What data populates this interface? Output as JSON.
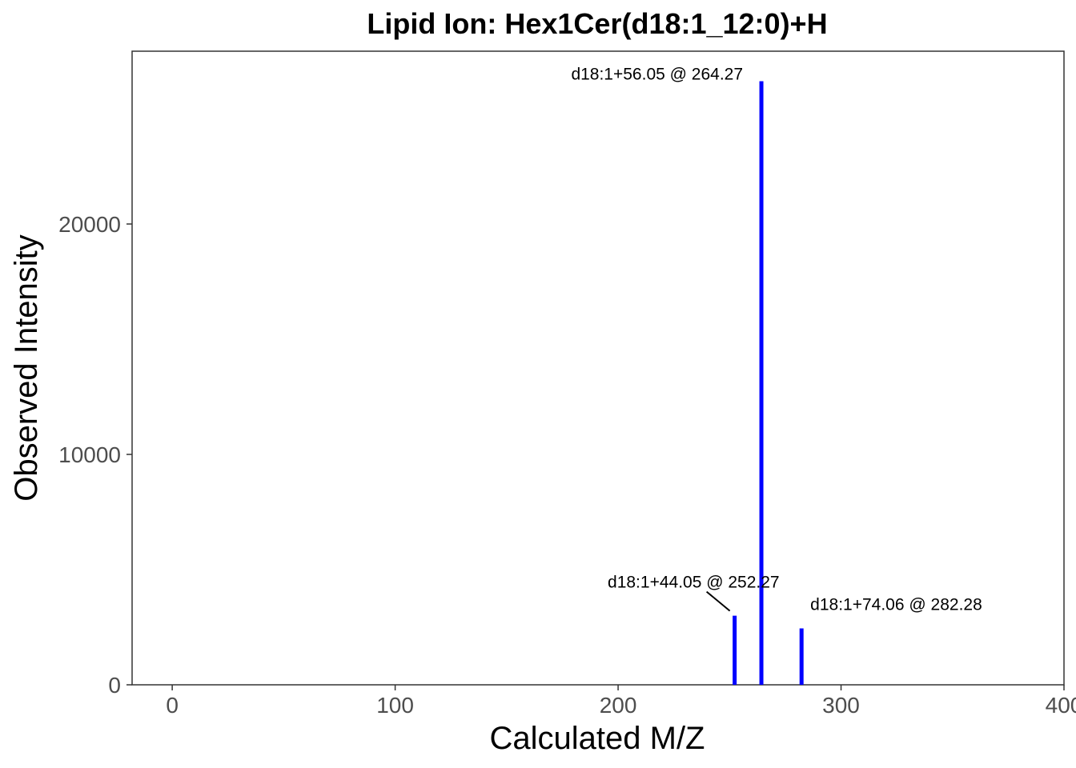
{
  "chart_data": {
    "type": "bar",
    "title": "Lipid Ion: Hex1Cer(d18:1_12:0)+H",
    "xlabel": "Calculated M/Z",
    "ylabel": "Observed Intensity",
    "xlim": [
      -18,
      400
    ],
    "ylim": [
      0,
      27500
    ],
    "xticks": [
      0,
      100,
      200,
      300,
      400
    ],
    "xtick_labels": [
      "0",
      "100",
      "200",
      "300",
      "400"
    ],
    "yticks": [
      0,
      10000,
      20000
    ],
    "ytick_labels": [
      "0",
      "10000",
      "20000"
    ],
    "grid": false,
    "bar_color": "#0000ff",
    "peaks": [
      {
        "x": 252.27,
        "y": 3000,
        "label": "d18:1+44.05 @ 252.27"
      },
      {
        "x": 264.27,
        "y": 26200,
        "label": "d18:1+56.05 @ 264.27"
      },
      {
        "x": 282.28,
        "y": 2450,
        "label": "d18:1+74.06 @ 282.28"
      }
    ]
  }
}
